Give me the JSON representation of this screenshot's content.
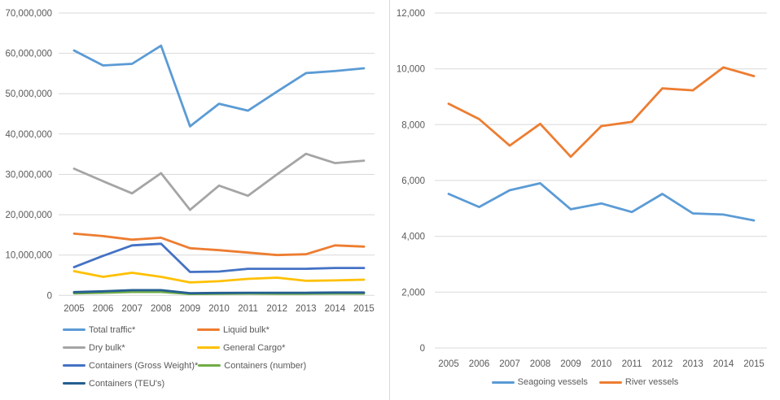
{
  "styles": {
    "background": "#ffffff",
    "gridline_color": "#d9d9d9",
    "divider_color": "#d9d9d9",
    "tick_text_color": "#595959",
    "legend_text_color": "#595959"
  },
  "chart_data": [
    {
      "type": "line",
      "title": "",
      "xlabel": "",
      "ylabel": "",
      "grid": true,
      "legend_position": "bottom-left-two-columns",
      "ylim": [
        0,
        70000000
      ],
      "ytick_step": 10000000,
      "ytick_labels": [
        "0",
        "10,000,000",
        "20,000,000",
        "30,000,000",
        "40,000,000",
        "50,000,000",
        "60,000,000",
        "70,000,000"
      ],
      "categories": [
        "2005",
        "2006",
        "2007",
        "2008",
        "2009",
        "2010",
        "2011",
        "2012",
        "2013",
        "2014",
        "2015"
      ],
      "series": [
        {
          "name": "Total traffic*",
          "color": "#5B9BD5",
          "values": [
            60700000,
            57000000,
            57400000,
            61900000,
            41900000,
            47500000,
            45800000,
            50500000,
            55100000,
            55600000,
            56300000
          ]
        },
        {
          "name": "Liquid bulk*",
          "color": "#ED7D31",
          "values": [
            15300000,
            14700000,
            13800000,
            14300000,
            11700000,
            11200000,
            10600000,
            10000000,
            10200000,
            12400000,
            12100000
          ]
        },
        {
          "name": "Dry bulk*",
          "color": "#A5A5A5",
          "values": [
            31400000,
            28300000,
            25300000,
            30300000,
            21200000,
            27200000,
            24700000,
            30000000,
            35100000,
            32800000,
            33400000
          ]
        },
        {
          "name": "General Cargo*",
          "color": "#FFC000",
          "values": [
            6000000,
            4600000,
            5600000,
            4600000,
            3200000,
            3500000,
            4100000,
            4400000,
            3600000,
            3700000,
            3900000
          ]
        },
        {
          "name": "Containers (Gross Weight)*",
          "color": "#4472C4",
          "values": [
            7000000,
            9800000,
            12400000,
            12800000,
            5800000,
            5900000,
            6600000,
            6600000,
            6600000,
            6800000,
            6800000
          ]
        },
        {
          "name": "Containers (number)",
          "color": "#70AD47",
          "values": [
            500000,
            650000,
            850000,
            850000,
            350000,
            400000,
            450000,
            400000,
            400000,
            450000,
            450000
          ]
        },
        {
          "name": "Containers (TEU's)",
          "color": "#255E91",
          "values": [
            800000,
            1000000,
            1300000,
            1300000,
            550000,
            600000,
            650000,
            650000,
            650000,
            700000,
            700000
          ]
        }
      ]
    },
    {
      "type": "line",
      "title": "",
      "xlabel": "",
      "ylabel": "",
      "grid": true,
      "legend_position": "bottom-center",
      "ylim": [
        0,
        12000
      ],
      "ytick_step": 2000,
      "ytick_labels": [
        "0",
        "2,000",
        "4,000",
        "6,000",
        "8,000",
        "10,000",
        "12,000"
      ],
      "categories": [
        "2005",
        "2006",
        "2007",
        "2008",
        "2009",
        "2010",
        "2011",
        "2012",
        "2013",
        "2014",
        "2015"
      ],
      "series": [
        {
          "name": "Seagoing vessels",
          "color": "#5B9BD5",
          "values": [
            5520,
            5050,
            5650,
            5900,
            4970,
            5180,
            4870,
            5520,
            4820,
            4780,
            4570
          ]
        },
        {
          "name": "River vessels",
          "color": "#ED7D31",
          "values": [
            8750,
            8200,
            7250,
            8030,
            6850,
            7950,
            8100,
            9300,
            9230,
            10050,
            9740
          ]
        }
      ]
    }
  ]
}
